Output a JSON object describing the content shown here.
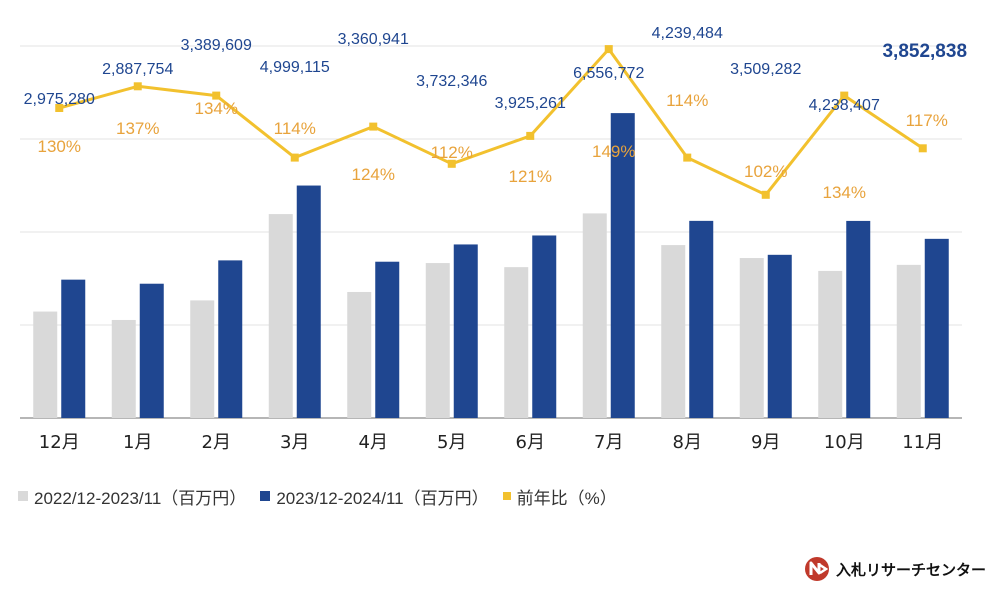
{
  "chart_data": {
    "type": "bar",
    "categories": [
      "12月",
      "1月",
      "2月",
      "3月",
      "4月",
      "5月",
      "6月",
      "7月",
      "8月",
      "9月",
      "10月",
      "11月"
    ],
    "series": [
      {
        "name": "2022/12-2023/11（百万円）",
        "kind": "bar",
        "color": "#d9d9d9",
        "values": [
          2289000,
          2108000,
          2529000,
          4385000,
          2710000,
          3332000,
          3244000,
          4400000,
          3719000,
          3440000,
          3163000,
          3293000
        ]
      },
      {
        "name": "2023/12-2024/11（百万円）",
        "kind": "bar",
        "color": "#1f4690",
        "values": [
          2975280,
          2887754,
          3389609,
          4999115,
          3360941,
          3732346,
          3925261,
          6556772,
          4239484,
          3509282,
          4238407,
          3852838
        ],
        "labels": [
          "2,975,280",
          "2,887,754",
          "3,389,609",
          "4,999,115",
          "3,360,941",
          "3,732,346",
          "3,925,261",
          "6,556,772",
          "4,239,484",
          "3,509,282",
          "4,238,407",
          "3,852,838"
        ]
      },
      {
        "name": "前年比（%）",
        "kind": "line",
        "color": "#f2c12e",
        "values": [
          130,
          137,
          134,
          114,
          124,
          112,
          121,
          149,
          114,
          102,
          134,
          117
        ],
        "labels": [
          "130%",
          "137%",
          "134%",
          "114%",
          "124%",
          "112%",
          "121%",
          "149%",
          "114%",
          "102%",
          "134%",
          "117%"
        ]
      }
    ],
    "ylim": [
      0,
      8000000
    ],
    "y2lim": [
      30,
      150
    ],
    "grid": true,
    "legend_position": "bottom-left"
  },
  "brand": {
    "name": "入札リサーチセンター",
    "logo_color": "#c0392b"
  }
}
